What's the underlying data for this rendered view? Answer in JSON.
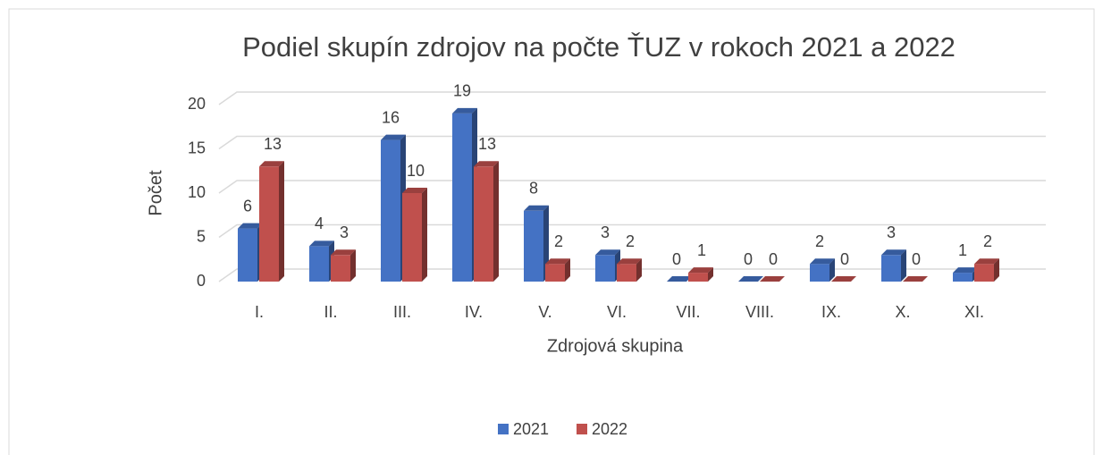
{
  "chart_data": {
    "type": "bar3d",
    "title": "Podiel skupín zdrojov na počte ŤUZ v rokoch 2021 a 2022",
    "x_label": "Zdrojová skupina",
    "y_label": "Počet",
    "categories": [
      "I.",
      "II.",
      "III.",
      "IV.",
      "V.",
      "VI.",
      "VII.",
      "VIII.",
      "IX.",
      "X.",
      "XI."
    ],
    "series": [
      {
        "name": "2021",
        "color": "#4472c4",
        "values": [
          6,
          4,
          16,
          19,
          8,
          3,
          0,
          0,
          2,
          3,
          1
        ]
      },
      {
        "name": "2022",
        "color": "#c0504d",
        "values": [
          13,
          3,
          10,
          13,
          2,
          2,
          1,
          0,
          0,
          0,
          2
        ]
      }
    ],
    "ylim": [
      0,
      20
    ],
    "yticks": [
      0,
      5,
      10,
      15,
      20
    ],
    "grid": true,
    "legend": "bottom"
  }
}
